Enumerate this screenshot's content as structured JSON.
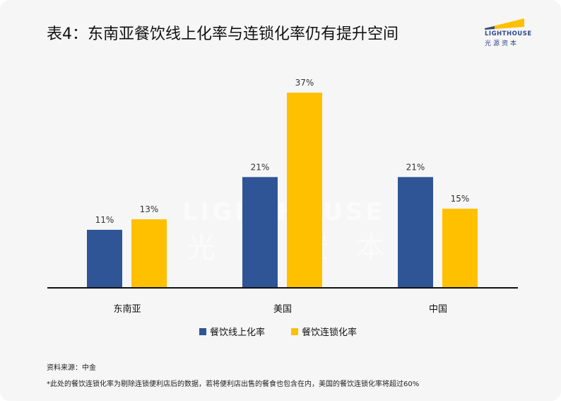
{
  "title": "表4：东南亚餐饮线上化率与连锁化率仍有提升空间",
  "logo": {
    "en": "LIGHTHOUSE",
    "cn": "光源资本"
  },
  "chart_data": {
    "type": "bar",
    "categories": [
      "东南亚",
      "美国",
      "中国"
    ],
    "series": [
      {
        "name": "餐饮线上化率",
        "values": [
          11,
          21,
          21
        ],
        "labels": [
          "11%",
          "21%",
          "21%"
        ],
        "color": "#2f5597"
      },
      {
        "name": "餐饮连锁化率",
        "values": [
          13,
          37,
          15
        ],
        "labels": [
          "13%",
          "37%",
          "15%"
        ],
        "color": "#ffc000"
      }
    ],
    "ylim": [
      0,
      37
    ],
    "legend": "bottom",
    "grid": false
  },
  "notes": {
    "source": "资料来源：中金",
    "footnote": "*此处的餐饮连锁化率为剔除连锁便利店后的数据，若将便利店出售的餐食也包含在内，美国的餐饮连锁化率将超过60%"
  }
}
